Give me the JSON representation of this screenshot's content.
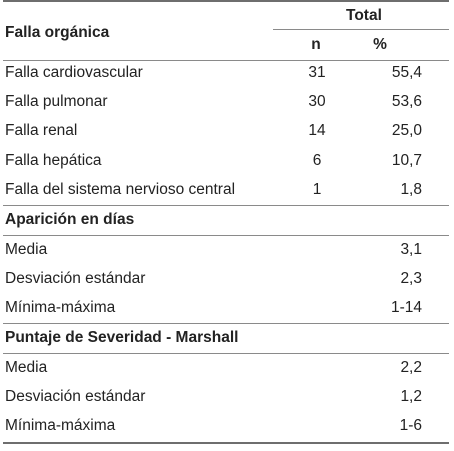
{
  "header": {
    "first_col": "Falla orgánica",
    "group": "Total",
    "col_n": "n",
    "col_pct": "%"
  },
  "falla_rows": [
    {
      "label": "Falla cardiovascular",
      "n": "31",
      "pct": "55,4"
    },
    {
      "label": "Falla pulmonar",
      "n": "30",
      "pct": "53,6"
    },
    {
      "label": "Falla renal",
      "n": "14",
      "pct": "25,0"
    },
    {
      "label": "Falla hepática",
      "n": "6",
      "pct": "10,7"
    },
    {
      "label": "Falla del sistema nervioso central",
      "n": "1",
      "pct": "1,8"
    }
  ],
  "aparicion": {
    "title": "Aparición en días",
    "rows": [
      {
        "label": "Media",
        "value": "3,1"
      },
      {
        "label": "Desviación estándar",
        "value": "2,3"
      },
      {
        "label": "Mínima-máxima",
        "value": "1-14"
      }
    ]
  },
  "puntaje": {
    "title": "Puntaje de Severidad - Marshall",
    "rows": [
      {
        "label": "Media",
        "value": "2,2"
      },
      {
        "label": "Desviación estándar",
        "value": "1,2"
      },
      {
        "label": "Mínima-máxima",
        "value": "1-6"
      }
    ]
  }
}
